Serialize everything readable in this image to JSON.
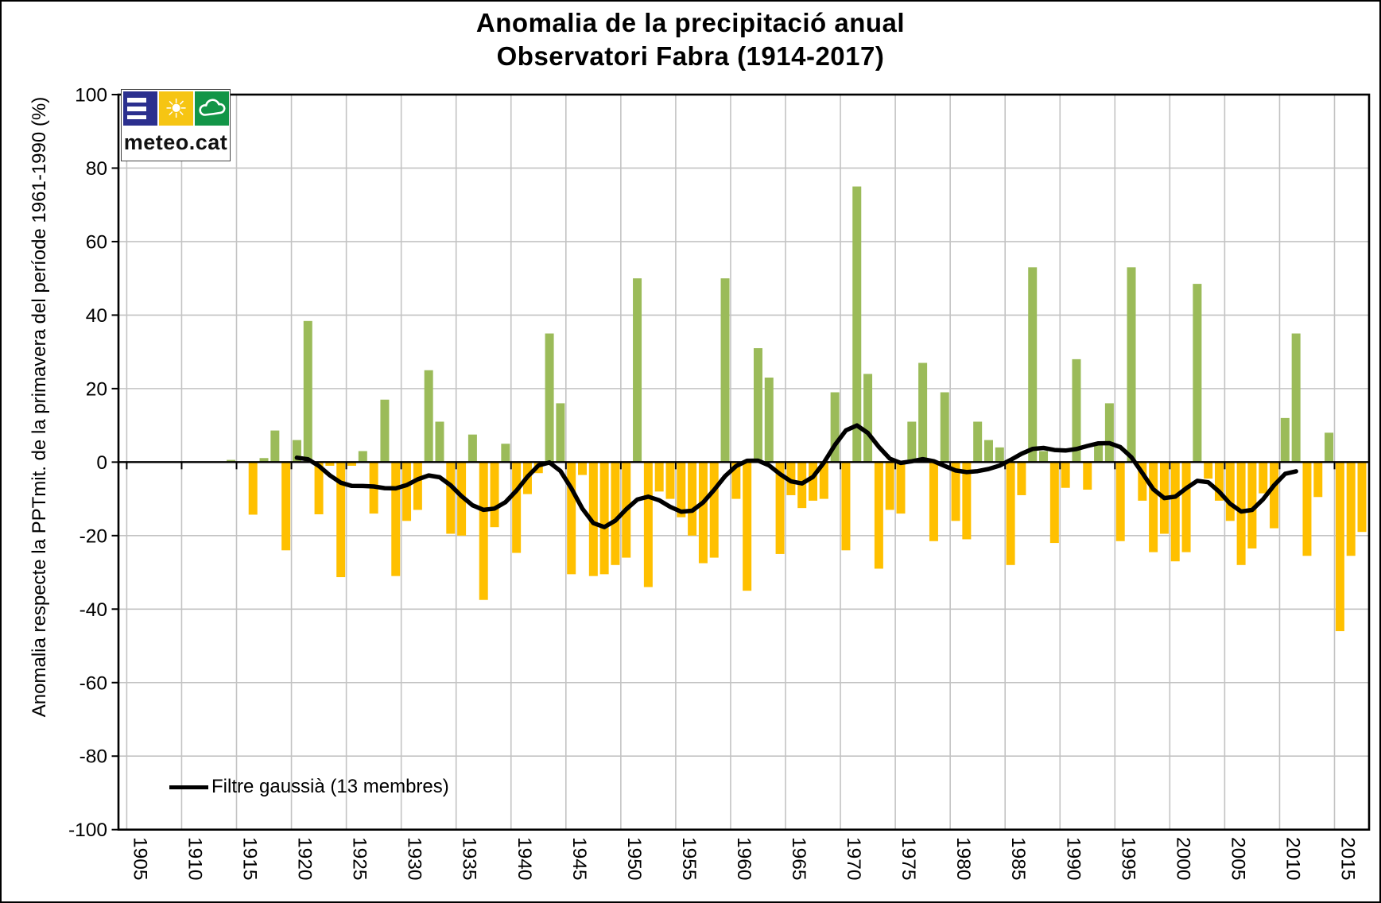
{
  "title": {
    "line1": "Anomalia de la precipitació anual",
    "line2": "Observatori Fabra (1914-2017)"
  },
  "y_axis_label": "Anomalia respecte la PPTmit.  de la primavera del període 1961-1990 (%)",
  "legend": {
    "label": "Filtre gaussià (13 membres)"
  },
  "logo": {
    "text": "meteo.cat"
  },
  "colors": {
    "positive_bar": "#9bbb59",
    "negative_bar": "#ffc000",
    "filter_line": "#000000",
    "gridline": "#c3c3c3",
    "axis": "#000000",
    "logo_blue": "#2b2f8e",
    "logo_yellow": "#f6c513",
    "logo_green": "#129547"
  },
  "chart_data": {
    "type": "bar",
    "title": "Anomalia de la precipitació anual — Observatori Fabra (1914-2017)",
    "xlabel": "",
    "ylabel": "Anomalia respecte la PPTmit.  de la primavera del període 1961-1990 (%)",
    "ylim": [
      -100,
      100
    ],
    "grid": true,
    "y_ticks": [
      -100,
      -80,
      -60,
      -40,
      -20,
      0,
      20,
      40,
      60,
      80,
      100
    ],
    "x_ticks": [
      1905,
      1910,
      1915,
      1920,
      1925,
      1930,
      1935,
      1940,
      1945,
      1950,
      1955,
      1960,
      1965,
      1970,
      1975,
      1980,
      1985,
      1990,
      1995,
      2000,
      2005,
      2010,
      2015
    ],
    "x_range_drawn": [
      1905,
      2018
    ],
    "years": [
      1914,
      1915,
      1916,
      1917,
      1918,
      1919,
      1920,
      1921,
      1922,
      1923,
      1924,
      1925,
      1926,
      1927,
      1928,
      1929,
      1930,
      1931,
      1932,
      1933,
      1934,
      1935,
      1936,
      1937,
      1938,
      1939,
      1940,
      1941,
      1942,
      1943,
      1944,
      1945,
      1946,
      1947,
      1948,
      1949,
      1950,
      1951,
      1952,
      1953,
      1954,
      1955,
      1956,
      1957,
      1958,
      1959,
      1960,
      1961,
      1962,
      1963,
      1964,
      1965,
      1966,
      1967,
      1968,
      1969,
      1970,
      1971,
      1972,
      1973,
      1974,
      1975,
      1976,
      1977,
      1978,
      1979,
      1980,
      1981,
      1982,
      1983,
      1984,
      1985,
      1986,
      1987,
      1988,
      1989,
      1990,
      1991,
      1992,
      1993,
      1994,
      1995,
      1996,
      1997,
      1998,
      1999,
      2000,
      2001,
      2002,
      2003,
      2004,
      2005,
      2006,
      2007,
      2008,
      2009,
      2010,
      2011,
      2012,
      2013,
      2014,
      2015,
      2016,
      2017
    ],
    "values": [
      0.6,
      0,
      -14.3,
      1.1,
      8.6,
      -24,
      6,
      38.4,
      -14.2,
      -1,
      -31.3,
      -1,
      3,
      -14,
      17,
      -31,
      -16,
      -13,
      25,
      11,
      -19.5,
      -20,
      7.5,
      -37.5,
      -17.7,
      5,
      -24.7,
      -8.7,
      -3,
      35,
      16,
      -30.5,
      -3.5,
      -31,
      -30.5,
      -28,
      -26,
      50,
      -34,
      -8,
      -10,
      -15,
      -20,
      -27.5,
      -26,
      50,
      -10,
      -35,
      31,
      23,
      -25,
      -9,
      -12.5,
      -10.5,
      -10,
      19,
      -24,
      75,
      24,
      -29,
      -13,
      -14,
      11,
      27,
      -21.5,
      19,
      -16,
      -21,
      11,
      6,
      4,
      -28,
      -9,
      53,
      3,
      -22,
      -7,
      28,
      -7.5,
      5,
      16,
      -21.5,
      53,
      -10.5,
      -24.5,
      -19.5,
      -27,
      -24.5,
      48.5,
      -4.5,
      -10.5,
      -16,
      -28,
      -23.5,
      -8.5,
      -18,
      12,
      35,
      -25.5,
      -9.5,
      8,
      -46,
      -25.5,
      -19
    ],
    "smoothing_line": {
      "label": "Filtre gaussià (13 membres)",
      "type": "gaussian",
      "members": 13,
      "sigma": 2.2,
      "start_year": 1920,
      "end_year": 2011,
      "color": "#000000"
    }
  }
}
